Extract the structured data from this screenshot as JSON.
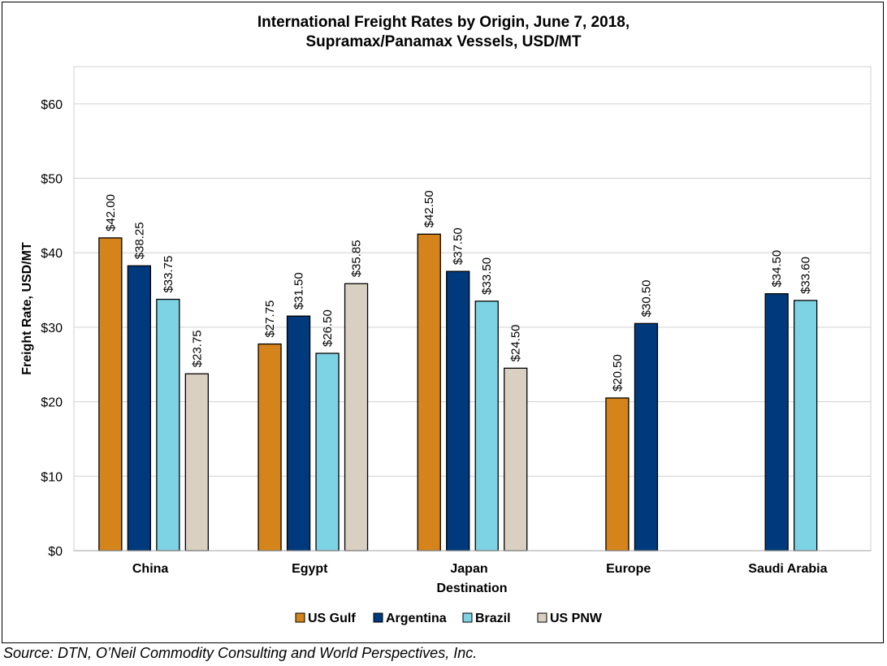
{
  "chart_data": {
    "type": "bar",
    "title_line1": "International Freight Rates by Origin, June 7, 2018,",
    "title_line2": "Supramax/Panamax Vessels, USD/MT",
    "xlabel": "Destination",
    "ylabel": "Freight Rate, USD/MT",
    "ylim": [
      0,
      65
    ],
    "yticks": [
      0,
      10,
      20,
      30,
      40,
      50,
      60
    ],
    "ytick_labels": [
      "$0",
      "$10",
      "$20",
      "$30",
      "$40",
      "$50",
      "$60"
    ],
    "grid": true,
    "legend_position": "bottom",
    "categories": [
      "China",
      "Egypt",
      "Japan",
      "Europe",
      "Saudi Arabia"
    ],
    "series": [
      {
        "name": "US Gulf",
        "color": "#D4841A",
        "values": [
          42.0,
          27.75,
          42.5,
          20.5,
          null
        ],
        "labels": [
          "$42.00",
          "$27.75",
          "$42.50",
          "$20.50",
          null
        ]
      },
      {
        "name": "Argentina",
        "color": "#003A7D",
        "values": [
          38.25,
          31.5,
          37.5,
          30.5,
          34.5
        ],
        "labels": [
          "$38.25",
          "$31.50",
          "$37.50",
          "$30.50",
          "$34.50"
        ]
      },
      {
        "name": "Brazil",
        "color": "#7DD3E3",
        "values": [
          33.75,
          26.5,
          33.5,
          null,
          33.6
        ],
        "labels": [
          "$33.75",
          "$26.50",
          "$33.50",
          null,
          "$33.60"
        ]
      },
      {
        "name": "US PNW",
        "color": "#D9D0C2",
        "values": [
          23.75,
          35.85,
          24.5,
          null,
          null
        ],
        "labels": [
          "$23.75",
          "$35.85",
          "$24.50",
          null,
          null
        ]
      }
    ]
  },
  "source_text": "Source: DTN, O’Neil Commodity Consulting and World Perspectives, Inc."
}
